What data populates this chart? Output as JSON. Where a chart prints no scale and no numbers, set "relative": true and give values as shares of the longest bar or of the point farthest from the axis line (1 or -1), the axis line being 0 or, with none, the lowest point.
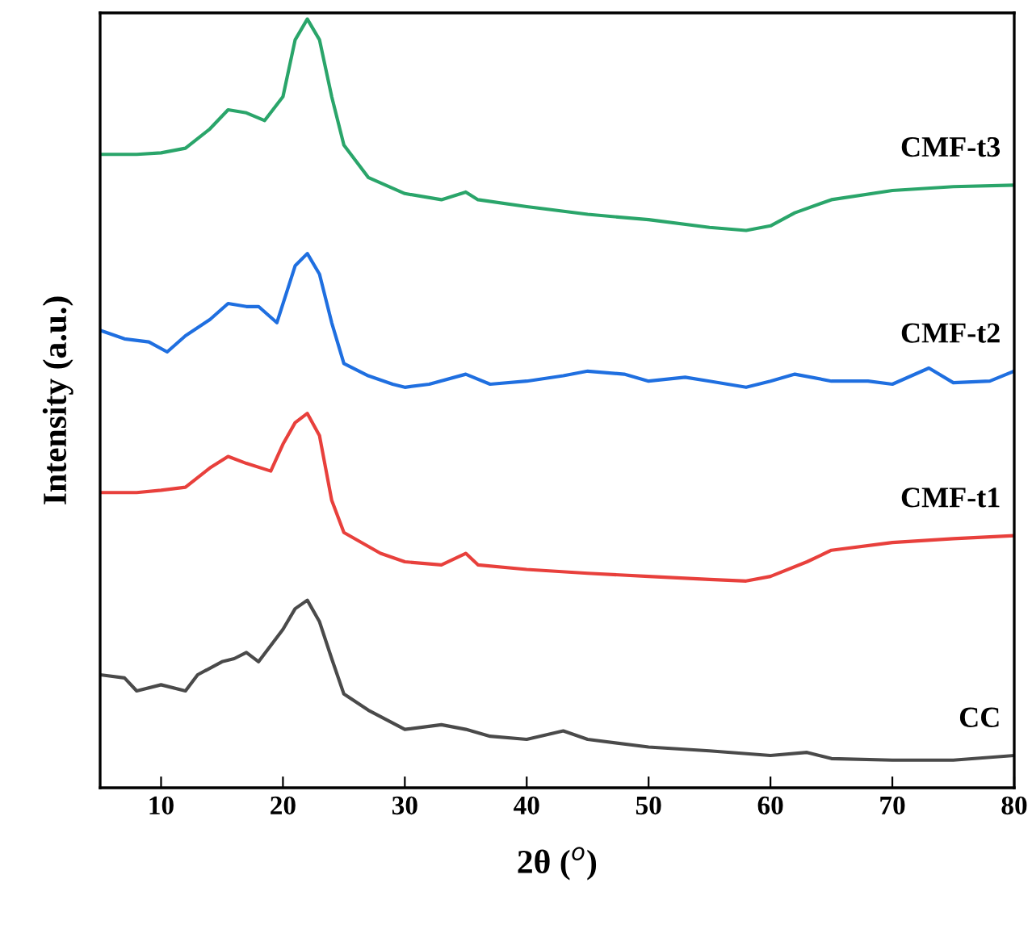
{
  "chart_data": {
    "type": "line",
    "relative": true,
    "xlabel": "2θ ($^{o}$)",
    "ylabel": "Intensity (a.u.)",
    "xlim": [
      5,
      80
    ],
    "xticks": [
      10,
      20,
      30,
      40,
      50,
      60,
      70,
      80
    ],
    "tick_labels": "x",
    "series": [
      {
        "name": "CMF-t3",
        "color": "#2aa56a",
        "x": [
          5,
          8,
          10,
          12,
          14,
          15.5,
          17,
          18.5,
          20,
          21,
          22,
          23,
          24,
          25,
          27,
          30,
          33,
          35,
          36,
          40,
          45,
          50,
          55,
          58,
          60,
          62,
          65,
          70,
          75,
          80
        ],
        "values": [
          0.824,
          0.824,
          0.826,
          0.832,
          0.857,
          0.882,
          0.878,
          0.868,
          0.899,
          0.973,
          1.0,
          0.973,
          0.899,
          0.836,
          0.794,
          0.773,
          0.765,
          0.775,
          0.765,
          0.756,
          0.746,
          0.739,
          0.729,
          0.725,
          0.731,
          0.748,
          0.765,
          0.777,
          0.782,
          0.784
        ]
      },
      {
        "name": "CMF-t2",
        "color": "#1f6fe0",
        "x": [
          5,
          7,
          9,
          10.5,
          12,
          14,
          15.5,
          17,
          18,
          19.5,
          21,
          22,
          23,
          24,
          25,
          27,
          29,
          30,
          32,
          35,
          37,
          40,
          43,
          45,
          48,
          50,
          53,
          55,
          58,
          60,
          62,
          65,
          68,
          70,
          73,
          75,
          78,
          80
        ],
        "values": [
          0.595,
          0.584,
          0.58,
          0.567,
          0.588,
          0.609,
          0.63,
          0.626,
          0.626,
          0.605,
          0.679,
          0.695,
          0.668,
          0.605,
          0.552,
          0.536,
          0.525,
          0.521,
          0.525,
          0.538,
          0.525,
          0.529,
          0.536,
          0.542,
          0.538,
          0.529,
          0.534,
          0.529,
          0.521,
          0.529,
          0.538,
          0.529,
          0.529,
          0.525,
          0.546,
          0.527,
          0.529,
          0.542
        ]
      },
      {
        "name": "CMF-t1",
        "color": "#e8403c",
        "x": [
          5,
          8,
          10,
          12,
          14,
          15.5,
          17,
          19,
          20,
          21,
          22,
          23,
          24,
          25,
          28,
          30,
          33,
          35,
          36,
          40,
          45,
          50,
          55,
          58,
          60,
          63,
          65,
          70,
          75,
          80
        ],
        "values": [
          0.384,
          0.384,
          0.387,
          0.391,
          0.416,
          0.431,
          0.422,
          0.412,
          0.447,
          0.475,
          0.487,
          0.458,
          0.374,
          0.332,
          0.305,
          0.294,
          0.29,
          0.305,
          0.29,
          0.284,
          0.279,
          0.275,
          0.271,
          0.269,
          0.275,
          0.294,
          0.309,
          0.319,
          0.324,
          0.328
        ]
      },
      {
        "name": "CC",
        "color": "#4a4a4a",
        "x": [
          5,
          7,
          8,
          10,
          12,
          13,
          15,
          16,
          17,
          18,
          20,
          21,
          22,
          23,
          24,
          25,
          27,
          30,
          33,
          35,
          37,
          40,
          43,
          45,
          50,
          55,
          60,
          63,
          65,
          70,
          75,
          80
        ],
        "values": [
          0.147,
          0.143,
          0.126,
          0.134,
          0.126,
          0.147,
          0.164,
          0.168,
          0.176,
          0.164,
          0.206,
          0.233,
          0.244,
          0.216,
          0.168,
          0.122,
          0.101,
          0.076,
          0.082,
          0.076,
          0.067,
          0.063,
          0.074,
          0.063,
          0.053,
          0.048,
          0.042,
          0.046,
          0.038,
          0.036,
          0.036,
          0.042
        ]
      }
    ]
  }
}
